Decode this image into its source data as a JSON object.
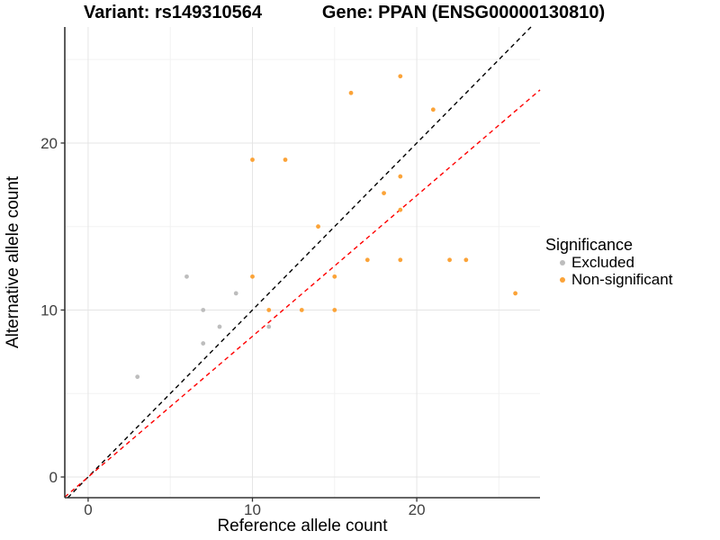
{
  "chart_data": {
    "type": "scatter",
    "title_left": "Variant: rs149310564",
    "title_right": "Gene: PPAN (ENSG00000130810)",
    "xlabel": "Reference allele count",
    "ylabel": "Alternative allele count",
    "legend_title": "Significance",
    "legend_position": "right",
    "xlim": [
      -1.42,
      27.5
    ],
    "ylim": [
      -1.24,
      26.95
    ],
    "x_ticks": [
      0,
      10,
      20
    ],
    "y_ticks": [
      0,
      10,
      20
    ],
    "x_minor_ticks": [
      5,
      15,
      25
    ],
    "y_minor_ticks": [
      5,
      15,
      25
    ],
    "grid": true,
    "series": [
      {
        "name": "Excluded",
        "color": "#BDBDBD",
        "points": [
          [
            3,
            6
          ],
          [
            6,
            12
          ],
          [
            7,
            8
          ],
          [
            7,
            10
          ],
          [
            8,
            9
          ],
          [
            9,
            11
          ],
          [
            11,
            9
          ]
        ]
      },
      {
        "name": "Non-significant",
        "color": "#FBA338",
        "points": [
          [
            10,
            12
          ],
          [
            10,
            19
          ],
          [
            11,
            10
          ],
          [
            12,
            19
          ],
          [
            13,
            10
          ],
          [
            14,
            15
          ],
          [
            15,
            10
          ],
          [
            15,
            12
          ],
          [
            16,
            23
          ],
          [
            17,
            13
          ],
          [
            18,
            17
          ],
          [
            19,
            13
          ],
          [
            19,
            16
          ],
          [
            19,
            18
          ],
          [
            19,
            24
          ],
          [
            21,
            22
          ],
          [
            22,
            13
          ],
          [
            23,
            13
          ],
          [
            26,
            11
          ]
        ]
      }
    ],
    "lines": [
      {
        "name": "identity-line",
        "color": "#000000",
        "dash": "dashed",
        "x1": -1.24,
        "y1": -1.24,
        "x2": 26.95,
        "y2": 26.95
      },
      {
        "name": "regression-line",
        "color": "#FF0000",
        "dash": "dashed",
        "x1": -1.42,
        "y1": -1.2,
        "x2": 27.5,
        "y2": 23.18
      }
    ],
    "colors": {
      "grid_major": "#E5E5E5",
      "grid_minor": "#F2F2F2",
      "axis_line": "#333333",
      "tick_text": "#404040"
    }
  }
}
